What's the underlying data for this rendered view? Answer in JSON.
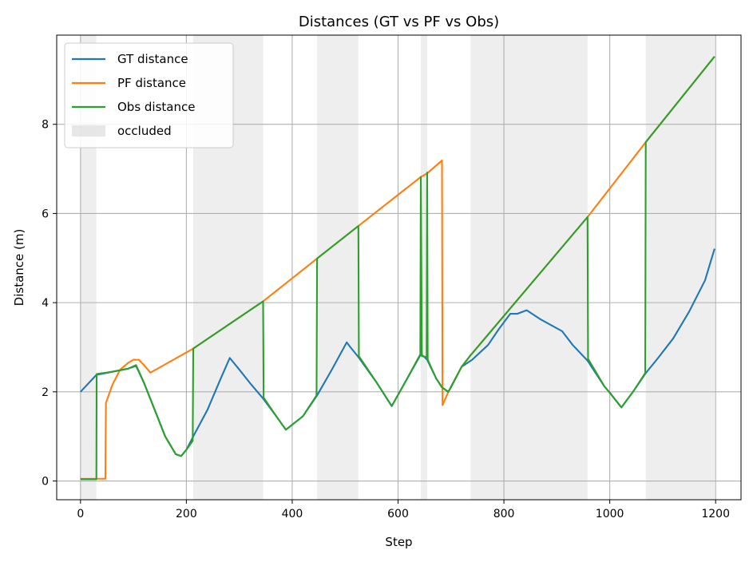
{
  "chart_data": {
    "type": "line",
    "title": "Distances (GT vs PF vs Obs)",
    "xlabel": "Step",
    "ylabel": "Distance (m)",
    "xlim": [
      -45,
      1248
    ],
    "ylim": [
      -0.42,
      10.0
    ],
    "xticks": [
      0,
      200,
      400,
      600,
      800,
      1000,
      1200
    ],
    "yticks": [
      0,
      2,
      4,
      6,
      8
    ],
    "xtick_labels": [
      "0",
      "200",
      "400",
      "600",
      "800",
      "1000",
      "1200"
    ],
    "ytick_labels": [
      "0",
      "2",
      "4",
      "6",
      "8"
    ],
    "grid": true,
    "legend_position": "top-left",
    "legend": [
      "GT distance",
      "PF distance",
      "Obs distance",
      "occluded"
    ],
    "occluded_spans": [
      [
        0,
        30
      ],
      [
        213,
        345
      ],
      [
        447,
        525
      ],
      [
        643,
        655
      ],
      [
        737,
        958
      ],
      [
        1068,
        1198
      ]
    ],
    "colors": {
      "gt": "#1f77b4",
      "pf": "#ff7f0e",
      "obs": "#2ca02c",
      "occluded": "#d3d3d3",
      "grid": "#b0b0b0"
    },
    "series": [
      {
        "name": "GT distance",
        "color": "#1f77b4",
        "points": [
          [
            0,
            2.0
          ],
          [
            30,
            2.38
          ],
          [
            60,
            2.45
          ],
          [
            90,
            2.52
          ],
          [
            105,
            2.58
          ],
          [
            120,
            2.2
          ],
          [
            140,
            1.6
          ],
          [
            160,
            1.0
          ],
          [
            180,
            0.6
          ],
          [
            190,
            0.56
          ],
          [
            200,
            0.7
          ],
          [
            213,
            1.0
          ],
          [
            240,
            1.6
          ],
          [
            265,
            2.3
          ],
          [
            282,
            2.76
          ],
          [
            300,
            2.5
          ],
          [
            320,
            2.2
          ],
          [
            345,
            1.85
          ],
          [
            370,
            1.45
          ],
          [
            388,
            1.15
          ],
          [
            420,
            1.45
          ],
          [
            447,
            1.92
          ],
          [
            475,
            2.5
          ],
          [
            503,
            3.11
          ],
          [
            510,
            3.0
          ],
          [
            525,
            2.78
          ],
          [
            560,
            2.2
          ],
          [
            588,
            1.68
          ],
          [
            615,
            2.25
          ],
          [
            643,
            2.84
          ],
          [
            650,
            2.78
          ],
          [
            655,
            2.72
          ],
          [
            672,
            2.3
          ],
          [
            683,
            2.1
          ],
          [
            695,
            2.0
          ],
          [
            700,
            2.1
          ],
          [
            720,
            2.56
          ],
          [
            740,
            2.72
          ],
          [
            770,
            3.05
          ],
          [
            790,
            3.4
          ],
          [
            812,
            3.75
          ],
          [
            825,
            3.75
          ],
          [
            843,
            3.83
          ],
          [
            870,
            3.62
          ],
          [
            910,
            3.36
          ],
          [
            930,
            3.05
          ],
          [
            958,
            2.7
          ],
          [
            990,
            2.12
          ],
          [
            1000,
            1.98
          ],
          [
            1022,
            1.65
          ],
          [
            1045,
            2.02
          ],
          [
            1068,
            2.42
          ],
          [
            1090,
            2.74
          ],
          [
            1120,
            3.2
          ],
          [
            1150,
            3.8
          ],
          [
            1180,
            4.5
          ],
          [
            1198,
            5.21
          ]
        ]
      },
      {
        "name": "PF distance",
        "color": "#ff7f0e",
        "points": [
          [
            0,
            0.05
          ],
          [
            30,
            0.05
          ],
          [
            47,
            0.05
          ],
          [
            48,
            1.75
          ],
          [
            60,
            2.15
          ],
          [
            75,
            2.5
          ],
          [
            90,
            2.65
          ],
          [
            100,
            2.72
          ],
          [
            110,
            2.72
          ],
          [
            120,
            2.6
          ],
          [
            132,
            2.43
          ],
          [
            150,
            2.55
          ],
          [
            213,
            2.97
          ],
          [
            345,
            4.03
          ],
          [
            447,
            4.99
          ],
          [
            525,
            5.72
          ],
          [
            643,
            6.82
          ],
          [
            655,
            6.9
          ],
          [
            683,
            7.19
          ],
          [
            684,
            1.7
          ],
          [
            695,
            2.0
          ],
          [
            720,
            2.56
          ],
          [
            737,
            2.82
          ],
          [
            958,
            5.92
          ],
          [
            1068,
            7.6
          ],
          [
            1198,
            9.52
          ]
        ]
      },
      {
        "name": "Obs distance",
        "color": "#2ca02c",
        "points": [
          [
            0,
            0.04
          ],
          [
            30,
            0.04
          ],
          [
            30.5,
            2.4
          ],
          [
            60,
            2.45
          ],
          [
            90,
            2.52
          ],
          [
            105,
            2.6
          ],
          [
            120,
            2.2
          ],
          [
            140,
            1.6
          ],
          [
            160,
            1.0
          ],
          [
            180,
            0.6
          ],
          [
            190,
            0.56
          ],
          [
            200,
            0.7
          ],
          [
            212,
            0.9
          ],
          [
            213,
            2.97
          ],
          [
            345,
            4.03
          ],
          [
            346,
            1.87
          ],
          [
            370,
            1.45
          ],
          [
            388,
            1.15
          ],
          [
            420,
            1.45
          ],
          [
            446,
            1.92
          ],
          [
            447,
            4.99
          ],
          [
            525,
            5.72
          ],
          [
            526,
            2.8
          ],
          [
            560,
            2.2
          ],
          [
            588,
            1.68
          ],
          [
            615,
            2.25
          ],
          [
            642,
            2.84
          ],
          [
            643,
            6.82
          ],
          [
            645,
            2.8
          ],
          [
            654,
            2.78
          ],
          [
            655,
            6.92
          ],
          [
            656,
            2.72
          ],
          [
            672,
            2.3
          ],
          [
            683,
            2.1
          ],
          [
            695,
            2.0
          ],
          [
            720,
            2.56
          ],
          [
            737,
            2.82
          ],
          [
            958,
            5.92
          ],
          [
            959,
            2.74
          ],
          [
            990,
            2.12
          ],
          [
            1000,
            1.98
          ],
          [
            1022,
            1.65
          ],
          [
            1045,
            2.02
          ],
          [
            1067,
            2.42
          ],
          [
            1068,
            7.6
          ],
          [
            1198,
            9.52
          ]
        ]
      }
    ]
  }
}
